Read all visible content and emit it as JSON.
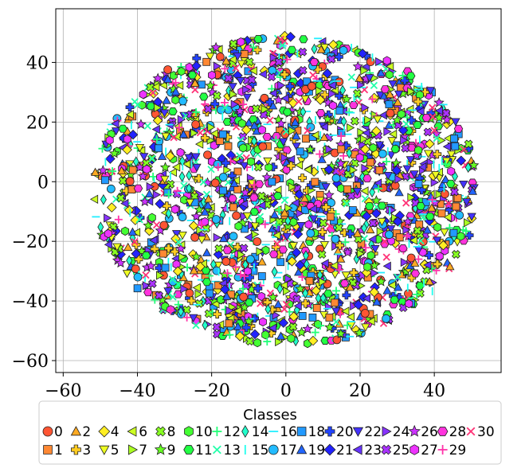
{
  "chart_data": {
    "type": "scatter",
    "title": "",
    "xlabel": "",
    "ylabel": "",
    "xlim": [
      -62,
      58
    ],
    "ylim": [
      -64,
      58
    ],
    "x_ticks": [
      "−60",
      "−40",
      "−20",
      "0",
      "20",
      "40"
    ],
    "x_tick_values": [
      -60,
      -40,
      -20,
      0,
      20,
      40
    ],
    "y_ticks": [
      "−60",
      "−40",
      "−20",
      "0",
      "20",
      "40"
    ],
    "y_tick_values": [
      -60,
      -40,
      -20,
      0,
      20,
      40
    ],
    "grid": true,
    "legend": {
      "title": "Classes",
      "placement": "below",
      "entries": [
        "0",
        "1",
        "2",
        "3",
        "4",
        "5",
        "6",
        "7",
        "8",
        "9",
        "10",
        "11",
        "12",
        "13",
        "14",
        "15",
        "16",
        "17",
        "18",
        "19",
        "20",
        "21",
        "22",
        "23",
        "24",
        "25",
        "26",
        "27",
        "28",
        "29",
        "30"
      ]
    },
    "point_cloud": {
      "shape": "disc",
      "center": [
        0,
        -3
      ],
      "radius_x": 52,
      "radius_y": 52,
      "points_per_class": 70
    },
    "series": [
      {
        "name": "0",
        "marker": "circle",
        "color": "#ff5533"
      },
      {
        "name": "1",
        "marker": "square",
        "color": "#ff8833"
      },
      {
        "name": "2",
        "marker": "triangle-up",
        "color": "#ffaa22"
      },
      {
        "name": "3",
        "marker": "plus-filled",
        "color": "#ffcc22"
      },
      {
        "name": "4",
        "marker": "diamond",
        "color": "#ffee22"
      },
      {
        "name": "5",
        "marker": "triangle-down",
        "color": "#eeff22"
      },
      {
        "name": "6",
        "marker": "triangle-left",
        "color": "#ccff22"
      },
      {
        "name": "7",
        "marker": "triangle-right",
        "color": "#aaff22"
      },
      {
        "name": "8",
        "marker": "x-filled",
        "color": "#88ff22"
      },
      {
        "name": "9",
        "marker": "star",
        "color": "#66ff22"
      },
      {
        "name": "10",
        "marker": "hexagon",
        "color": "#44ff33"
      },
      {
        "name": "11",
        "marker": "hexagon2",
        "color": "#22ff44"
      },
      {
        "name": "12",
        "marker": "plus",
        "color": "#22ff77"
      },
      {
        "name": "13",
        "marker": "x",
        "color": "#22ffaa"
      },
      {
        "name": "14",
        "marker": "thin-diamond",
        "color": "#22ffcc"
      },
      {
        "name": "15",
        "marker": "vline",
        "color": "#22ffee"
      },
      {
        "name": "16",
        "marker": "hline",
        "color": "#22eeff"
      },
      {
        "name": "17",
        "marker": "circle",
        "color": "#22bbff"
      },
      {
        "name": "18",
        "marker": "square",
        "color": "#2299ff"
      },
      {
        "name": "19",
        "marker": "triangle-up",
        "color": "#2266ff"
      },
      {
        "name": "20",
        "marker": "plus-filled",
        "color": "#2244ff"
      },
      {
        "name": "21",
        "marker": "diamond",
        "color": "#2222ff"
      },
      {
        "name": "22",
        "marker": "triangle-down",
        "color": "#4433ff"
      },
      {
        "name": "23",
        "marker": "triangle-left",
        "color": "#6633ff"
      },
      {
        "name": "24",
        "marker": "triangle-right",
        "color": "#8833ff"
      },
      {
        "name": "25",
        "marker": "x-filled",
        "color": "#aa33ff"
      },
      {
        "name": "26",
        "marker": "star",
        "color": "#cc33ff"
      },
      {
        "name": "27",
        "marker": "hexagon",
        "color": "#ee33ff"
      },
      {
        "name": "28",
        "marker": "hexagon2",
        "color": "#ff33dd"
      },
      {
        "name": "29",
        "marker": "plus",
        "color": "#ff33aa"
      },
      {
        "name": "30",
        "marker": "x",
        "color": "#ff3377"
      }
    ]
  }
}
